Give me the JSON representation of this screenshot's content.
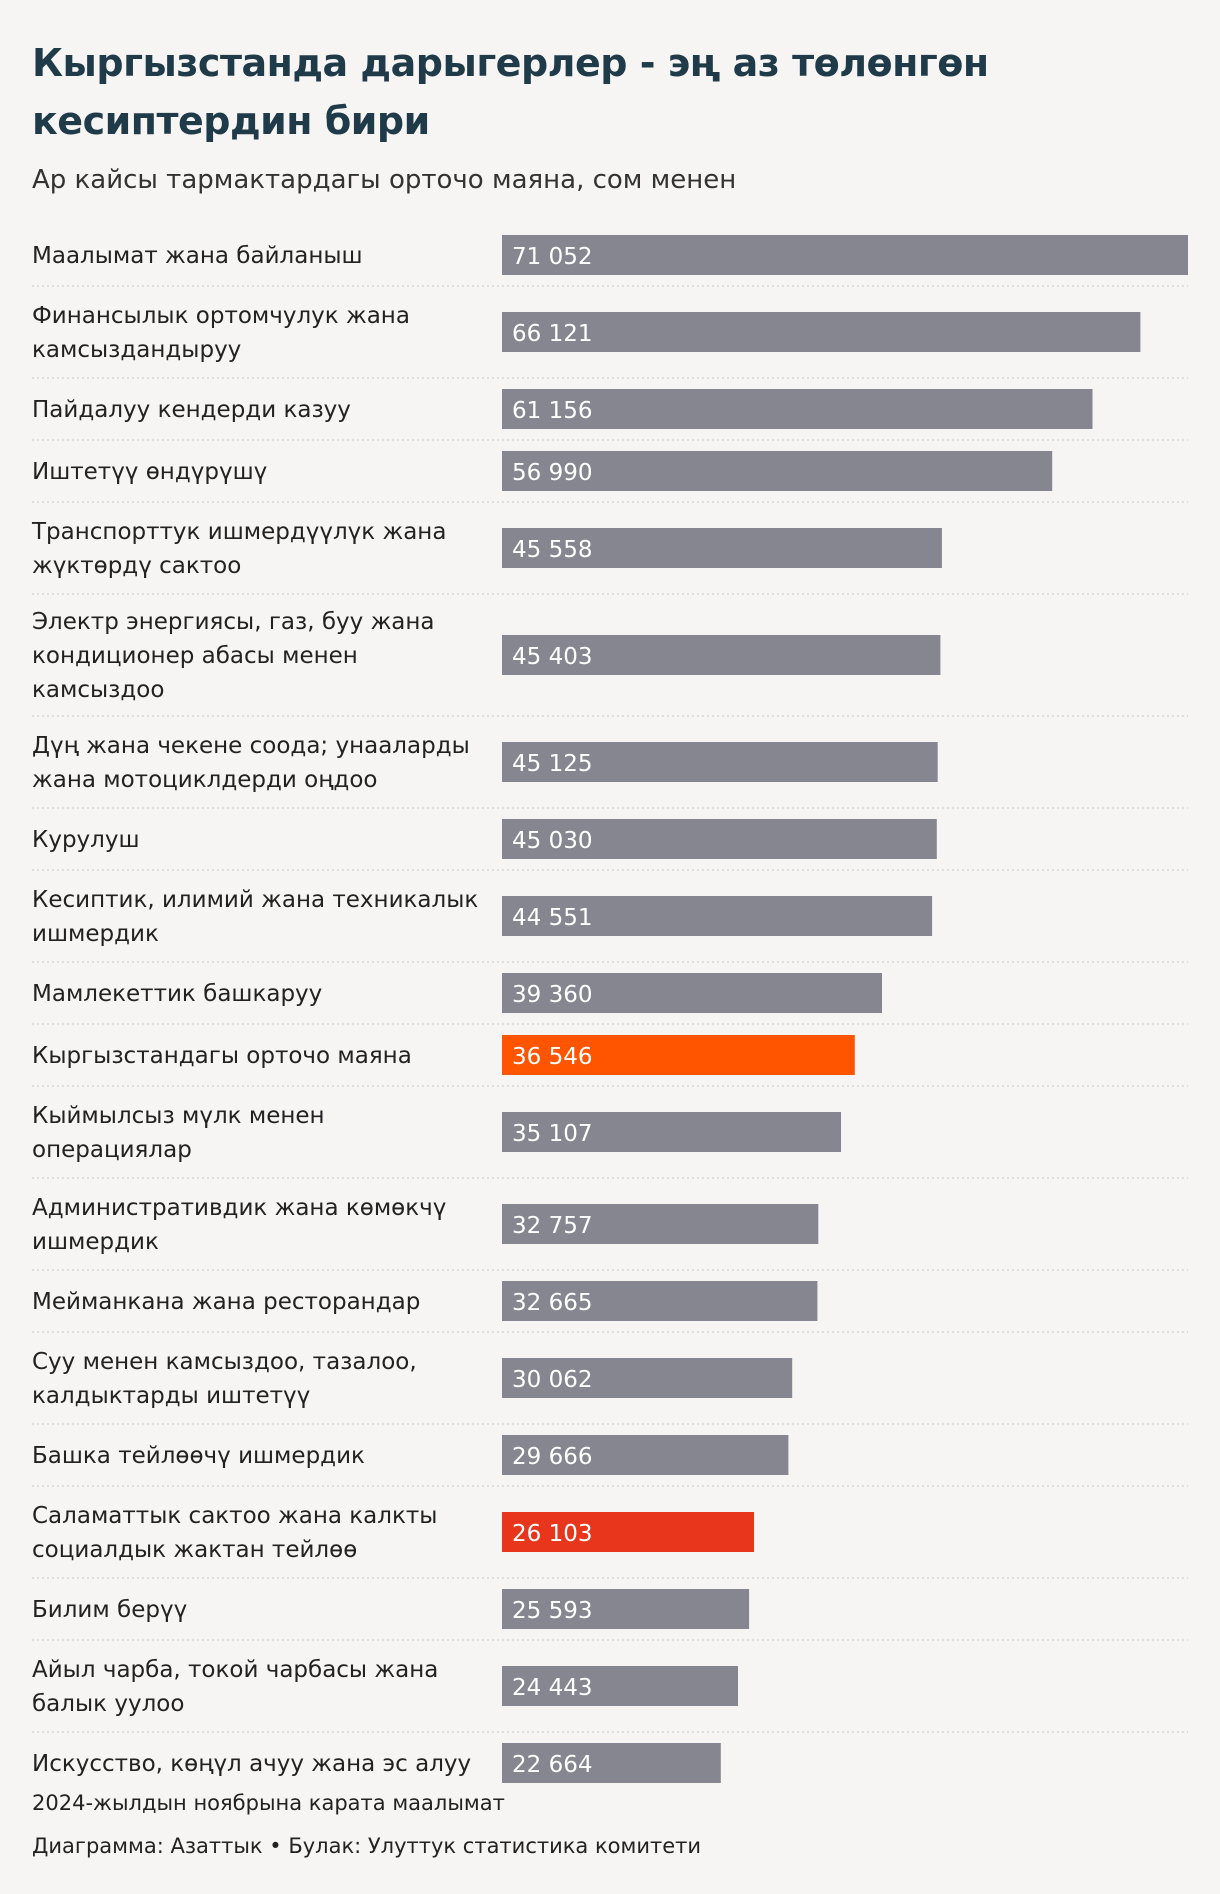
{
  "title": "Кыргызстанда дарыгерлер - эң аз төлөнгөн кесиптердин бири",
  "subtitle": "Ар кайсы тармактардагы орточо маяна, сом менен",
  "footer": {
    "note": "2024-жылдын ноябрына карата маалымат",
    "source": "Диаграмма: Азаттык • Булак: Улуттук статистика комитети"
  },
  "colors": {
    "default_bar": "#868690",
    "average_bar": "#ff5400",
    "health_bar": "#e8361c",
    "value_text": "#ffffff",
    "separator": "#c8c8c8",
    "label_text": "#222222"
  },
  "chart_data": {
    "type": "bar",
    "orientation": "horizontal",
    "xlim": [
      0,
      71052
    ],
    "categories": [
      [
        "Маалымат жана байланыш"
      ],
      [
        "Финансылык ортомчулук жана",
        "камсыздандыруу"
      ],
      [
        "Пайдалуу кендерди казуу"
      ],
      [
        "Иштетүү өндүрүшү"
      ],
      [
        "Транспорттук ишмердүүлүк жана",
        "жүктөрдү сактоо"
      ],
      [
        "Электр энергиясы, газ, буу жана",
        "кондиционер абасы менен",
        "камсыздоо"
      ],
      [
        "Дүң жана чекене соода; унааларды",
        "жана мотоциклдерди оңдоо"
      ],
      [
        "Курулуш"
      ],
      [
        "Кесиптик, илимий жана техникалык",
        "ишмердик"
      ],
      [
        "Мамлекеттик башкаруу"
      ],
      [
        "Кыргызстандагы орточо маяна"
      ],
      [
        "Кыймылсыз мүлк менен",
        "операциялар"
      ],
      [
        "Административдик жана көмөкчү",
        "ишмердик"
      ],
      [
        "Мейманкана жана ресторандар"
      ],
      [
        "Суу менен камсыздоо, тазалоо,",
        "калдыктарды иштетүү"
      ],
      [
        "Башка тейлөөчү ишмердик"
      ],
      [
        "Саламаттык сактоо жана калкты",
        "социалдык жактан тейлөө"
      ],
      [
        "Билим берүү"
      ],
      [
        "Айыл чарба, токой чарбасы жана",
        "балык уулоо"
      ],
      [
        "Искусство, көңүл ачуу жана эс алуу"
      ]
    ],
    "values": [
      71052,
      66121,
      61156,
      56990,
      45558,
      45403,
      45125,
      45030,
      44551,
      39360,
      36546,
      35107,
      32757,
      32665,
      30062,
      29666,
      26103,
      25593,
      24443,
      22664
    ],
    "value_labels": [
      "71 052",
      "66 121",
      "61 156",
      "56 990",
      "45 558",
      "45 403",
      "45 125",
      "45 030",
      "44 551",
      "39 360",
      "36 546",
      "35 107",
      "32 757",
      "32 665",
      "30 062",
      "29 666",
      "26 103",
      "25 593",
      "24 443",
      "22 664"
    ],
    "highlights": {
      "Кыргызстандагы орточо маяна": "average_bar",
      "Саламаттык сактоо жана калкты": "health_bar"
    }
  }
}
